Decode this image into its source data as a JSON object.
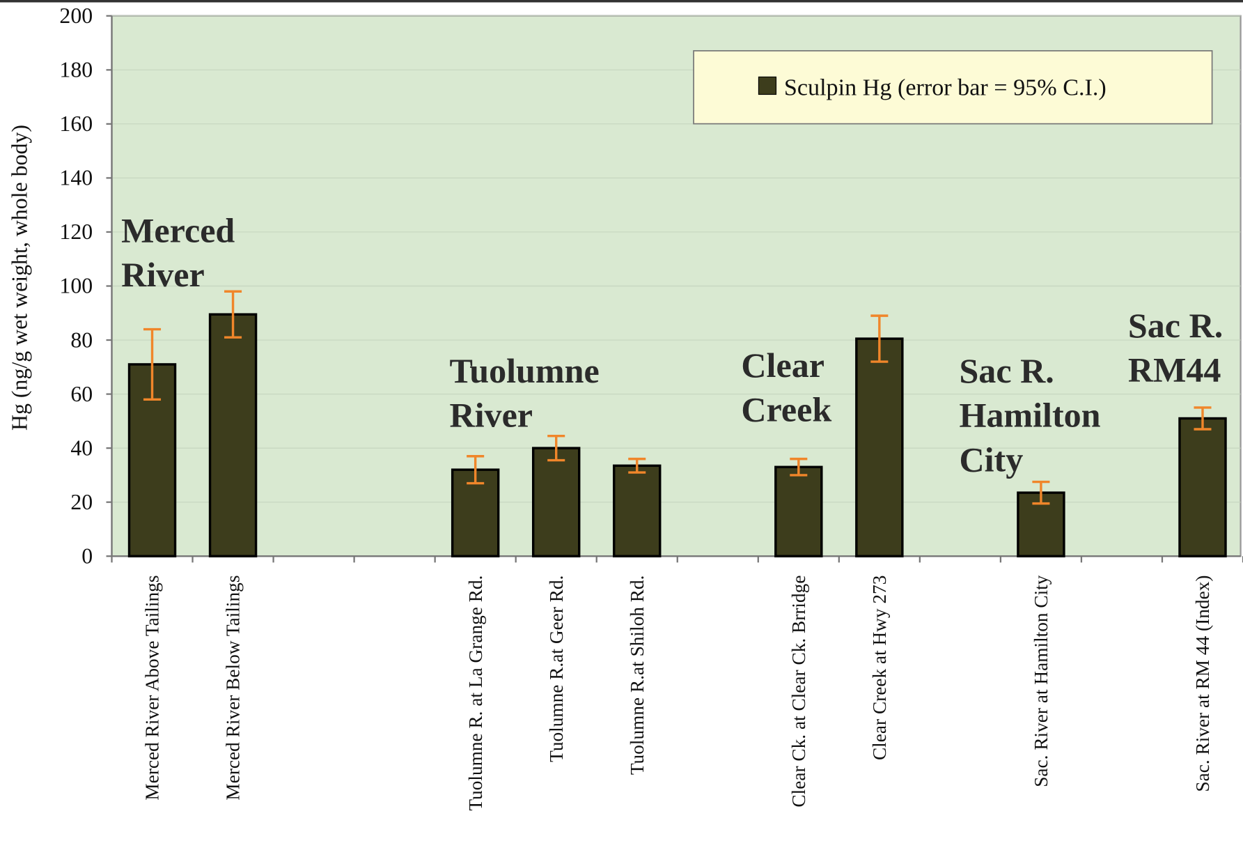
{
  "chart_data": {
    "type": "bar",
    "ylabel": "Hg (ng/g wet weight, whole body)",
    "categories": [
      "Merced River Above Tailings",
      "Merced River Below Tailings",
      null,
      null,
      "Tuolumne R. at La Grange Rd.",
      "Tuolumne R.at Geer Rd.",
      "Tuolumne R.at Shiloh Rd.",
      null,
      "Clear Ck. at Clear Ck. Brridge",
      "Clear Creek at Hwy 273",
      null,
      "Sac. River at Hamilton City",
      null,
      "Sac. River at RM 44 (Index)"
    ],
    "series": [
      {
        "name": "Sculpin Hg (error bar = 95% C.I.)",
        "color": "#3d3d1c",
        "error_color": "#f0862a",
        "values": [
          71,
          89.5,
          null,
          null,
          32,
          40,
          33.5,
          null,
          33,
          80.5,
          null,
          23.5,
          null,
          51
        ],
        "errors": [
          13,
          8.5,
          null,
          null,
          5,
          4.5,
          2.5,
          null,
          3,
          8.5,
          null,
          4,
          null,
          4
        ]
      }
    ],
    "annotations": [
      [
        "Merced",
        "River"
      ],
      [
        "Tuolumne",
        "River"
      ],
      [
        "Clear",
        "Creek"
      ],
      [
        "Sac R.",
        "Hamilton",
        "City"
      ],
      [
        "Sac R.",
        "RM44"
      ]
    ],
    "ylim": [
      0,
      200
    ],
    "yticks": [
      0,
      20,
      40,
      60,
      80,
      100,
      120,
      140,
      160,
      180,
      200
    ],
    "background": "#d9e9d1",
    "legend": "upper right"
  }
}
